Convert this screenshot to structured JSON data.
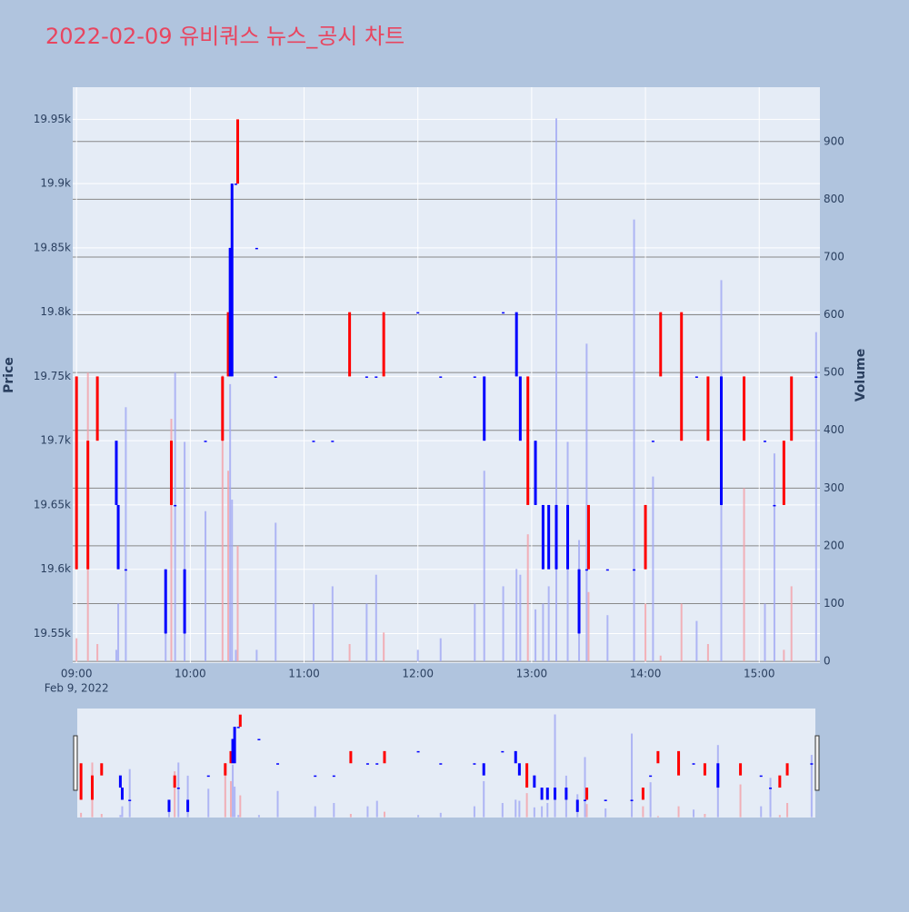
{
  "chart_data": {
    "type": "candlestick",
    "title": "2022-02-09 유비쿼스 뉴스_공시 차트",
    "ylabel": "Price",
    "y2label": "Volume",
    "x": [
      "2022-02-09 09:00",
      "2022-02-09 09:06",
      "2022-02-09 09:11",
      "2022-02-09 09:21",
      "2022-02-09 09:22",
      "2022-02-09 09:26",
      "2022-02-09 09:47",
      "2022-02-09 09:50",
      "2022-02-09 09:52",
      "2022-02-09 09:57",
      "2022-02-09 10:08",
      "2022-02-09 10:17",
      "2022-02-09 10:20",
      "2022-02-09 10:21",
      "2022-02-09 10:22",
      "2022-02-09 10:24",
      "2022-02-09 10:25",
      "2022-02-09 10:35",
      "2022-02-09 10:45",
      "2022-02-09 11:05",
      "2022-02-09 11:15",
      "2022-02-09 11:24",
      "2022-02-09 11:33",
      "2022-02-09 11:38",
      "2022-02-09 11:42",
      "2022-02-09 12:00",
      "2022-02-09 12:12",
      "2022-02-09 12:30",
      "2022-02-09 12:35",
      "2022-02-09 12:45",
      "2022-02-09 12:52",
      "2022-02-09 12:54",
      "2022-02-09 12:58",
      "2022-02-09 13:02",
      "2022-02-09 13:06",
      "2022-02-09 13:09",
      "2022-02-09 13:13",
      "2022-02-09 13:19",
      "2022-02-09 13:25",
      "2022-02-09 13:29",
      "2022-02-09 13:30",
      "2022-02-09 13:40",
      "2022-02-09 13:54",
      "2022-02-09 14:00",
      "2022-02-09 14:04",
      "2022-02-09 14:08",
      "2022-02-09 14:19",
      "2022-02-09 14:27",
      "2022-02-09 14:33",
      "2022-02-09 14:40",
      "2022-02-09 14:52",
      "2022-02-09 15:03",
      "2022-02-09 15:08",
      "2022-02-09 15:13",
      "2022-02-09 15:17",
      "2022-02-09 15:30"
    ],
    "open": [
      19600,
      19600,
      19700,
      19700,
      19650,
      19600,
      19600,
      19650,
      19650,
      19600,
      19700,
      19700,
      19750,
      19850,
      19900,
      19900,
      19900,
      19850,
      19750,
      19700,
      19700,
      19750,
      19750,
      19750,
      19750,
      19800,
      19750,
      19750,
      19750,
      19800,
      19800,
      19750,
      19650,
      19700,
      19650,
      19650,
      19650,
      19650,
      19600,
      19600,
      19600,
      19600,
      19600,
      19600,
      19700,
      19750,
      19700,
      19750,
      19700,
      19750,
      19700,
      19700,
      19650,
      19650,
      19700,
      19750
    ],
    "close": [
      19750,
      19700,
      19750,
      19650,
      19600,
      19600,
      19550,
      19700,
      19650,
      19550,
      19700,
      19750,
      19800,
      19750,
      19750,
      19900,
      19950,
      19850,
      19750,
      19700,
      19700,
      19800,
      19750,
      19750,
      19800,
      19800,
      19750,
      19750,
      19700,
      19800,
      19750,
      19700,
      19750,
      19650,
      19600,
      19600,
      19600,
      19600,
      19550,
      19600,
      19650,
      19600,
      19600,
      19650,
      19700,
      19800,
      19800,
      19750,
      19750,
      19650,
      19750,
      19700,
      19650,
      19700,
      19750,
      19750
    ],
    "volume": [
      40,
      500,
      30,
      20,
      100,
      440,
      60,
      420,
      500,
      380,
      260,
      495,
      330,
      480,
      280,
      20,
      200,
      20,
      240,
      100,
      130,
      30,
      100,
      150,
      50,
      20,
      40,
      100,
      330,
      130,
      160,
      150,
      220,
      90,
      100,
      130,
      940,
      380,
      210,
      550,
      120,
      80,
      765,
      100,
      320,
      10,
      100,
      70,
      30,
      660,
      300,
      100,
      360,
      20,
      130,
      570
    ],
    "increasing_color": "#ff0000",
    "decreasing_color": "#0000ff",
    "increasing_volume_color": "#f4a0a8",
    "decreasing_volume_color": "#a0a8f4",
    "xlim": [
      "2022-02-09 08:58",
      "2022-02-09 15:32"
    ],
    "xticks": [
      {
        "value": "2022-02-09 09:00",
        "label": "09:00"
      },
      {
        "value": "2022-02-09 10:00",
        "label": "10:00"
      },
      {
        "value": "2022-02-09 11:00",
        "label": "11:00"
      },
      {
        "value": "2022-02-09 12:00",
        "label": "12:00"
      },
      {
        "value": "2022-02-09 13:00",
        "label": "13:00"
      },
      {
        "value": "2022-02-09 14:00",
        "label": "14:00"
      },
      {
        "value": "2022-02-09 15:00",
        "label": "15:00"
      }
    ],
    "xtick_sublabel": "Feb 9, 2022",
    "ylim": [
      19527,
      19975
    ],
    "yticks": [
      {
        "value": 19550,
        "label": "19.55k"
      },
      {
        "value": 19600,
        "label": "19.6k"
      },
      {
        "value": 19650,
        "label": "19.65k"
      },
      {
        "value": 19700,
        "label": "19.7k"
      },
      {
        "value": 19750,
        "label": "19.75k"
      },
      {
        "value": 19800,
        "label": "19.8k"
      },
      {
        "value": 19850,
        "label": "19.85k"
      },
      {
        "value": 19900,
        "label": "19.9k"
      },
      {
        "value": 19950,
        "label": "19.95k"
      }
    ],
    "y2lim": [
      -3,
      994
    ],
    "y2ticks": [
      0,
      100,
      200,
      300,
      400,
      500,
      600,
      700,
      800,
      900
    ],
    "grid": true,
    "rangeslider": true
  }
}
